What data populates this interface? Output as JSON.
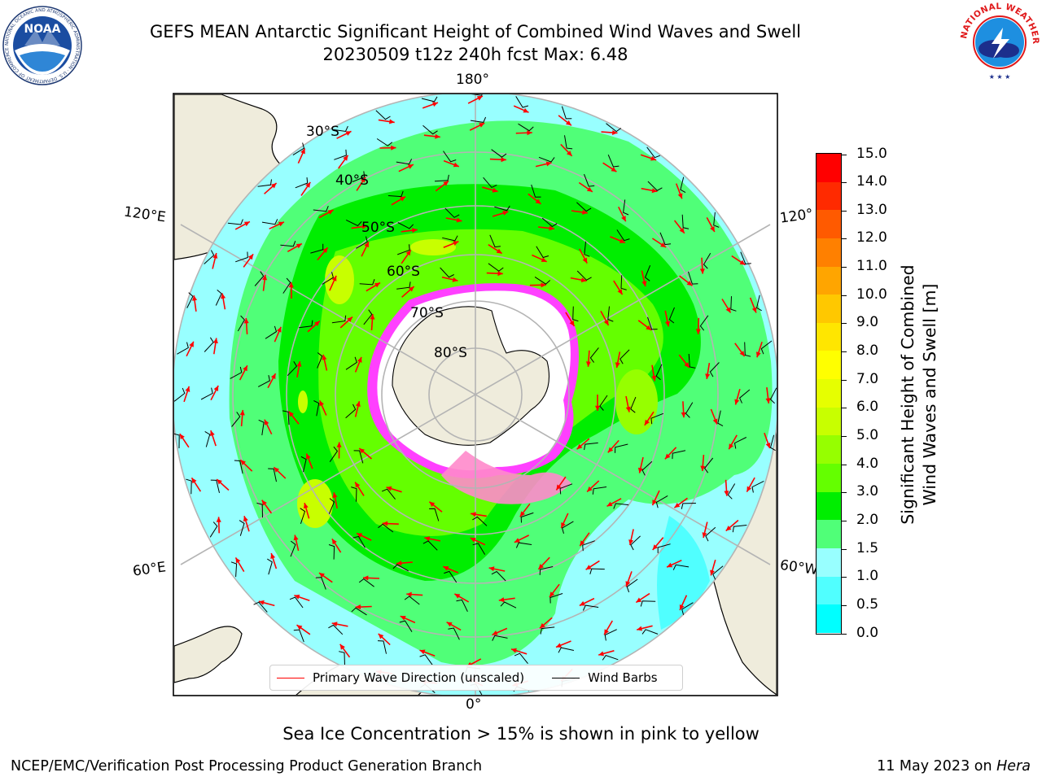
{
  "title": {
    "line1": "GEFS MEAN Antarctic Significant Height of Combined Wind Waves and Swell",
    "line2": "20230509 t12z 240h fcst   Max: 6.48"
  },
  "logos": {
    "left": "NOAA",
    "left_ring": "NATIONAL OCEANIC AND ATMOSPHERIC ADMINISTRATION · U.S. DEPARTMENT OF COMMERCE ·",
    "right_ring": "NATIONAL WEATHER SERVICE"
  },
  "map": {
    "projection": "south-polar-stereographic",
    "longitude_labels": {
      "top": "180°",
      "bottom": "0°",
      "upper_left": "120°E",
      "upper_right": "120°",
      "lower_left": "60°E",
      "lower_right": "60°W"
    },
    "latitude_labels": [
      "30°S",
      "40°S",
      "50°S",
      "60°S",
      "70°S",
      "80°S"
    ],
    "colors": {
      "land": "#efecdc",
      "ice_shelf": "#ffffff",
      "sea_ice": "#ff40ff",
      "grid": "#b4b4b4",
      "wave_arrow": "#ff0000",
      "barb": "#000000"
    }
  },
  "legend": {
    "items": [
      {
        "label": "Primary Wave Direction (unscaled)",
        "color": "#ff0000"
      },
      {
        "label": "Wind Barbs",
        "color": "#000000"
      }
    ]
  },
  "colorbar": {
    "label_line1": "Significant Height of Combined",
    "label_line2": "Wind Waves and Swell [m]",
    "ticks": [
      "15.0",
      "14.0",
      "13.0",
      "12.0",
      "11.0",
      "10.0",
      "9.0",
      "8.0",
      "7.0",
      "6.0",
      "5.0",
      "4.0",
      "3.0",
      "2.0",
      "1.5",
      "1.0",
      "0.5",
      "0.0"
    ],
    "colors": [
      "#ff0000",
      "#ff2a00",
      "#ff5a00",
      "#ff8000",
      "#ffa500",
      "#ffc800",
      "#ffe600",
      "#ffff00",
      "#e6ff00",
      "#c8ff00",
      "#96ff00",
      "#64ff00",
      "#00ee00",
      "#50ff78",
      "#98ffff",
      "#50ffff",
      "#00ffff",
      "#0080ff",
      "#0000ff"
    ]
  },
  "note": "Sea Ice Concentration > 15% is shown in pink to yellow",
  "footer": {
    "left": "NCEP/EMC/Verification Post Processing Product Generation Branch",
    "right_date": "11 May 2023 on ",
    "right_host": "Hera"
  }
}
